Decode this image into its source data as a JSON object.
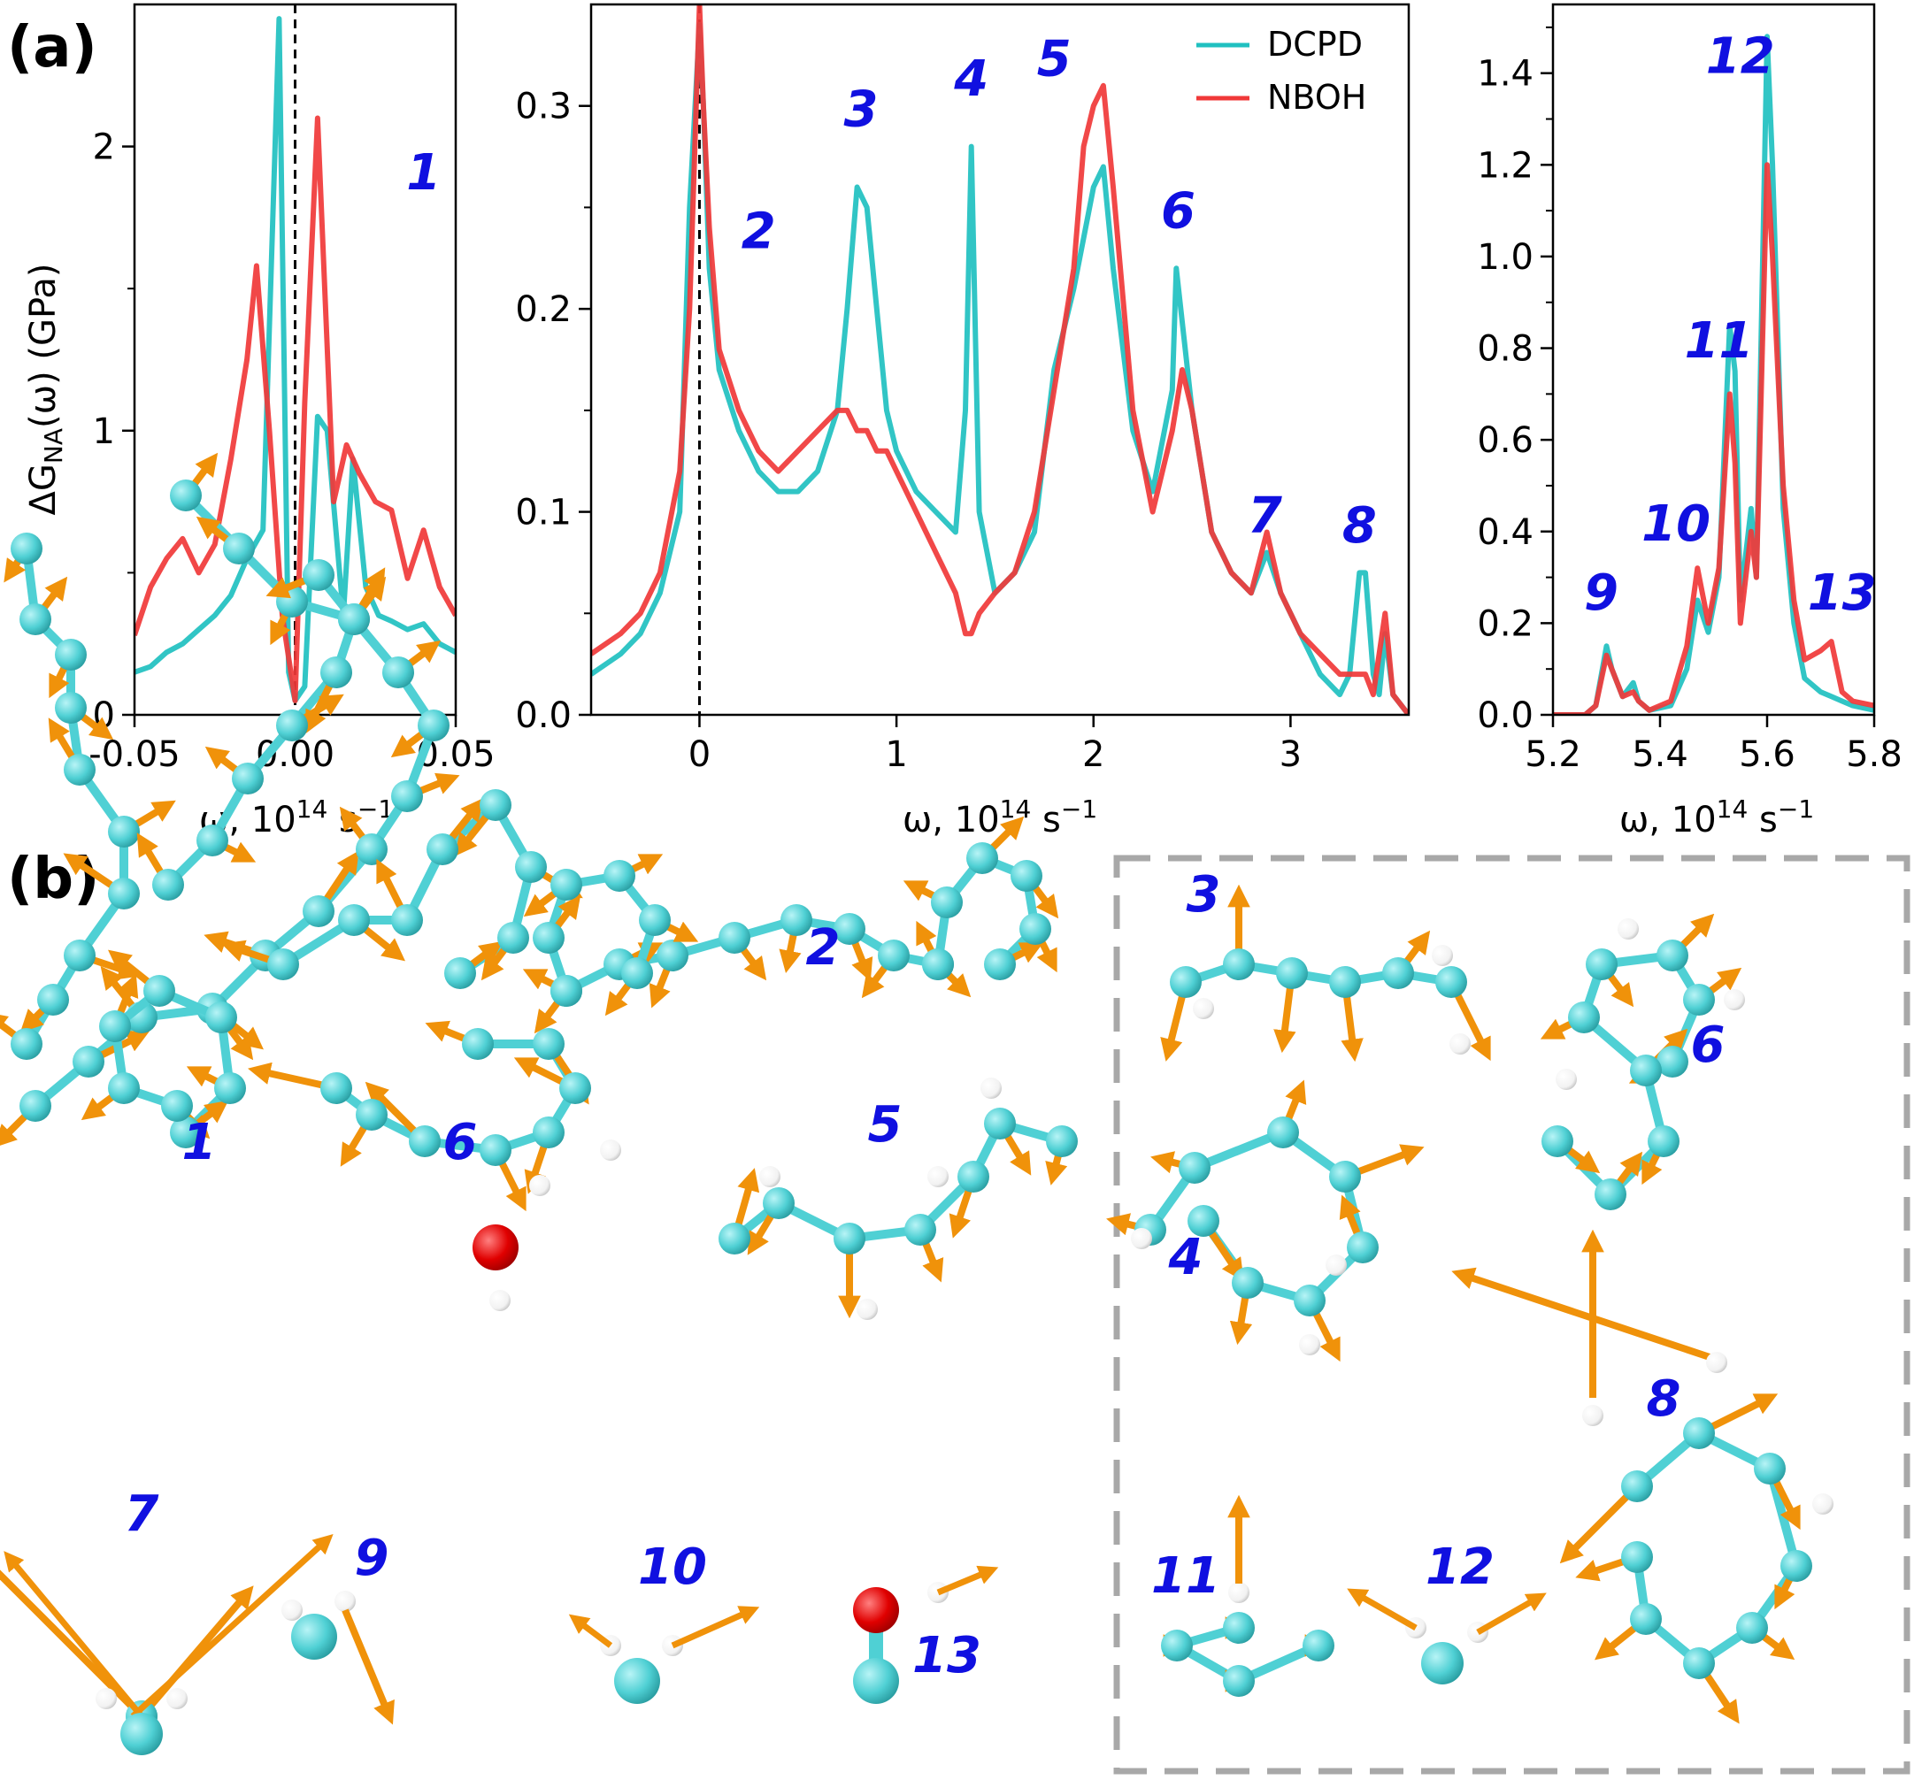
{
  "figure": {
    "panel_a_label": "(a)",
    "panel_b_label": "(b)",
    "ylabel_main": "ΔG",
    "ylabel_sub": "NA",
    "ylabel_rest": "(ω) (GPa)",
    "xlabel_main": "ω, 10",
    "xlabel_exp": "14",
    "xlabel_unit": " s",
    "xlabel_unit_exp": "−1"
  },
  "colors": {
    "DCPD": "#20c0c0",
    "NBOH": "#f03838",
    "peak_label": "#1010e0",
    "atom_C": "#4fd0d4",
    "atom_H": "#ffffff",
    "atom_O": "#e00000",
    "arrow": "#f0920a",
    "box": "#a8a8a8"
  },
  "chart_data": [
    {
      "type": "line",
      "panel": "left",
      "xlim": [
        -0.05,
        0.05
      ],
      "ylim": [
        0,
        2.5
      ],
      "xticks": [
        "-0.05",
        "0.00",
        "0.05"
      ],
      "xtick_values": [
        -0.05,
        0.0,
        0.05
      ],
      "yticks": [
        "0",
        "1",
        "2"
      ],
      "ytick_values": [
        0,
        1,
        2
      ],
      "vline": 0,
      "series": [
        {
          "name": "DCPD",
          "x": [
            -0.05,
            -0.045,
            -0.04,
            -0.035,
            -0.03,
            -0.025,
            -0.02,
            -0.015,
            -0.01,
            -0.005,
            -0.002,
            0.0,
            0.003,
            0.007,
            0.01,
            0.015,
            0.018,
            0.022,
            0.026,
            0.03,
            0.035,
            0.04,
            0.045,
            0.05
          ],
          "y": [
            0.15,
            0.17,
            0.22,
            0.25,
            0.3,
            0.35,
            0.42,
            0.55,
            0.65,
            2.45,
            0.15,
            0.05,
            0.1,
            1.05,
            1.0,
            0.35,
            0.9,
            0.45,
            0.35,
            0.33,
            0.3,
            0.32,
            0.25,
            0.22
          ]
        },
        {
          "name": "NBOH",
          "x": [
            -0.05,
            -0.045,
            -0.04,
            -0.035,
            -0.03,
            -0.025,
            -0.02,
            -0.015,
            -0.012,
            -0.008,
            -0.004,
            0.0,
            0.003,
            0.007,
            0.012,
            0.016,
            0.02,
            0.025,
            0.03,
            0.035,
            0.04,
            0.045,
            0.05
          ],
          "y": [
            0.28,
            0.45,
            0.55,
            0.62,
            0.5,
            0.6,
            0.9,
            1.25,
            1.58,
            1.0,
            0.35,
            0.05,
            1.1,
            2.1,
            0.75,
            0.95,
            0.85,
            0.75,
            0.72,
            0.48,
            0.65,
            0.45,
            0.35
          ]
        }
      ],
      "annotations": [
        {
          "text": "1",
          "x": 0.04,
          "y": 1.85
        }
      ]
    },
    {
      "type": "line",
      "panel": "middle",
      "xlim": [
        -0.55,
        3.6
      ],
      "ylim": [
        0,
        0.35
      ],
      "xticks": [
        "0",
        "1",
        "2",
        "3"
      ],
      "xtick_values": [
        0,
        1,
        2,
        3
      ],
      "yticks": [
        "0.0",
        "0.1",
        "0.2",
        "0.3"
      ],
      "ytick_values": [
        0.0,
        0.1,
        0.2,
        0.3
      ],
      "vline": 0,
      "legend": {
        "position": "top-right",
        "entries": [
          "DCPD",
          "NBOH"
        ]
      },
      "series": [
        {
          "name": "DCPD",
          "x": [
            -0.55,
            -0.4,
            -0.3,
            -0.2,
            -0.1,
            -0.05,
            0.0,
            0.02,
            0.05,
            0.1,
            0.2,
            0.3,
            0.4,
            0.5,
            0.6,
            0.7,
            0.75,
            0.8,
            0.85,
            0.9,
            0.95,
            1.0,
            1.1,
            1.2,
            1.3,
            1.35,
            1.38,
            1.42,
            1.5,
            1.6,
            1.7,
            1.8,
            1.9,
            2.0,
            2.05,
            2.1,
            2.2,
            2.3,
            2.4,
            2.42,
            2.5,
            2.6,
            2.7,
            2.8,
            2.88,
            2.95,
            3.05,
            3.15,
            3.25,
            3.3,
            3.35,
            3.38,
            3.42,
            3.45,
            3.48,
            3.52,
            3.6
          ],
          "y": [
            0.02,
            0.03,
            0.04,
            0.06,
            0.1,
            0.25,
            0.34,
            0.3,
            0.22,
            0.17,
            0.14,
            0.12,
            0.11,
            0.11,
            0.12,
            0.15,
            0.2,
            0.26,
            0.25,
            0.2,
            0.15,
            0.13,
            0.11,
            0.1,
            0.09,
            0.15,
            0.28,
            0.1,
            0.06,
            0.07,
            0.09,
            0.17,
            0.21,
            0.26,
            0.27,
            0.22,
            0.14,
            0.11,
            0.16,
            0.22,
            0.15,
            0.09,
            0.07,
            0.06,
            0.08,
            0.06,
            0.04,
            0.02,
            0.01,
            0.02,
            0.07,
            0.07,
            0.02,
            0.01,
            0.04,
            0.01,
            0.0
          ]
        },
        {
          "name": "NBOH",
          "x": [
            -0.55,
            -0.4,
            -0.3,
            -0.2,
            -0.1,
            -0.05,
            0.0,
            0.02,
            0.05,
            0.1,
            0.2,
            0.3,
            0.4,
            0.5,
            0.6,
            0.7,
            0.75,
            0.8,
            0.85,
            0.9,
            0.95,
            1.0,
            1.1,
            1.2,
            1.3,
            1.35,
            1.38,
            1.42,
            1.5,
            1.6,
            1.7,
            1.8,
            1.9,
            1.95,
            2.0,
            2.05,
            2.1,
            2.2,
            2.3,
            2.4,
            2.45,
            2.5,
            2.6,
            2.7,
            2.8,
            2.88,
            2.95,
            3.05,
            3.15,
            3.25,
            3.3,
            3.35,
            3.38,
            3.42,
            3.45,
            3.48,
            3.52,
            3.6
          ],
          "y": [
            0.03,
            0.04,
            0.05,
            0.07,
            0.12,
            0.2,
            0.35,
            0.3,
            0.24,
            0.18,
            0.15,
            0.13,
            0.12,
            0.13,
            0.14,
            0.15,
            0.15,
            0.14,
            0.14,
            0.13,
            0.13,
            0.12,
            0.1,
            0.08,
            0.06,
            0.04,
            0.04,
            0.05,
            0.06,
            0.07,
            0.1,
            0.16,
            0.22,
            0.28,
            0.3,
            0.31,
            0.26,
            0.15,
            0.1,
            0.14,
            0.17,
            0.15,
            0.09,
            0.07,
            0.06,
            0.09,
            0.06,
            0.04,
            0.03,
            0.02,
            0.02,
            0.02,
            0.02,
            0.01,
            0.03,
            0.05,
            0.01,
            0.0
          ]
        }
      ],
      "annotations": [
        {
          "text": "2",
          "x": 0.3,
          "y": 0.23
        },
        {
          "text": "3",
          "x": 0.82,
          "y": 0.29
        },
        {
          "text": "4",
          "x": 1.38,
          "y": 0.305
        },
        {
          "text": "5",
          "x": 1.8,
          "y": 0.315
        },
        {
          "text": "6",
          "x": 2.43,
          "y": 0.24
        },
        {
          "text": "7",
          "x": 2.87,
          "y": 0.09
        },
        {
          "text": "8",
          "x": 3.35,
          "y": 0.085
        }
      ]
    },
    {
      "type": "line",
      "panel": "right",
      "xlim": [
        5.2,
        5.8
      ],
      "ylim": [
        0,
        1.55
      ],
      "xticks": [
        "5.2",
        "5.4",
        "5.6",
        "5.8"
      ],
      "xtick_values": [
        5.2,
        5.4,
        5.6,
        5.8
      ],
      "yticks": [
        "0.0",
        "0.2",
        "0.4",
        "0.6",
        "0.8",
        "1.0",
        "1.2",
        "1.4"
      ],
      "ytick_values": [
        0.0,
        0.2,
        0.4,
        0.6,
        0.8,
        1.0,
        1.2,
        1.4
      ],
      "series": [
        {
          "name": "DCPD",
          "x": [
            5.2,
            5.26,
            5.28,
            5.3,
            5.31,
            5.33,
            5.35,
            5.36,
            5.38,
            5.42,
            5.45,
            5.47,
            5.49,
            5.51,
            5.53,
            5.54,
            5.55,
            5.57,
            5.58,
            5.6,
            5.61,
            5.63,
            5.65,
            5.67,
            5.7,
            5.72,
            5.74,
            5.76,
            5.8
          ],
          "y": [
            0.0,
            0.0,
            0.02,
            0.15,
            0.1,
            0.04,
            0.07,
            0.03,
            0.01,
            0.02,
            0.1,
            0.25,
            0.18,
            0.3,
            0.85,
            0.75,
            0.25,
            0.45,
            0.3,
            1.48,
            1.2,
            0.45,
            0.2,
            0.08,
            0.05,
            0.04,
            0.03,
            0.02,
            0.01
          ]
        },
        {
          "name": "NBOH",
          "x": [
            5.2,
            5.26,
            5.28,
            5.3,
            5.31,
            5.33,
            5.35,
            5.36,
            5.38,
            5.42,
            5.45,
            5.47,
            5.49,
            5.51,
            5.53,
            5.54,
            5.55,
            5.57,
            5.58,
            5.6,
            5.61,
            5.63,
            5.65,
            5.67,
            5.7,
            5.72,
            5.74,
            5.76,
            5.8
          ],
          "y": [
            0.0,
            0.0,
            0.02,
            0.13,
            0.1,
            0.04,
            0.05,
            0.03,
            0.01,
            0.03,
            0.15,
            0.32,
            0.2,
            0.32,
            0.7,
            0.55,
            0.2,
            0.4,
            0.3,
            1.2,
            1.0,
            0.5,
            0.25,
            0.12,
            0.14,
            0.16,
            0.05,
            0.03,
            0.02
          ]
        }
      ],
      "annotations": [
        {
          "text": "9",
          "x": 5.29,
          "y": 0.23
        },
        {
          "text": "10",
          "x": 5.43,
          "y": 0.38
        },
        {
          "text": "11",
          "x": 5.51,
          "y": 0.78
        },
        {
          "text": "12",
          "x": 5.55,
          "y": 1.4
        },
        {
          "text": "13",
          "x": 5.74,
          "y": 0.23
        }
      ]
    }
  ],
  "panel_b": {
    "mode_labels": [
      "1",
      "2",
      "3",
      "4",
      "5",
      "6",
      "6",
      "7",
      "8",
      "9",
      "10",
      "11",
      "12",
      "13"
    ]
  }
}
